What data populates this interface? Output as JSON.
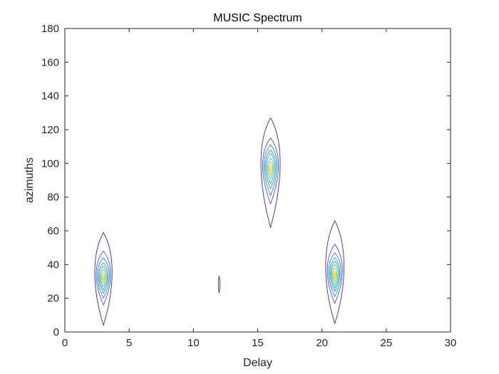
{
  "chart_data": {
    "type": "contour",
    "title": "MUSIC Spectrum",
    "xlabel": "Delay",
    "ylabel": "azimuths",
    "xlim": [
      0,
      30
    ],
    "ylim": [
      0,
      180
    ],
    "xticks": [
      0,
      5,
      10,
      15,
      20,
      25,
      30
    ],
    "yticks": [
      0,
      20,
      40,
      60,
      80,
      100,
      120,
      140,
      160,
      180
    ],
    "grid": false,
    "colors": {
      "levels": [
        "#3e26a8",
        "#4253e9",
        "#2f7bf5",
        "#2a9dd9",
        "#20b6b4",
        "#4fc38a",
        "#a6c150",
        "#f5ba3c",
        "#f9e61f"
      ]
    },
    "peaks": [
      {
        "delay": 3,
        "azimuth": 32,
        "contours": [
          {
            "level": 1,
            "dx": 0.9,
            "y_low": 4,
            "y_high": 59
          },
          {
            "level": 2,
            "dx": 0.75,
            "y_low": 16,
            "y_high": 48
          },
          {
            "level": 3,
            "dx": 0.62,
            "y_low": 20,
            "y_high": 44
          },
          {
            "level": 4,
            "dx": 0.5,
            "y_low": 23,
            "y_high": 41
          },
          {
            "level": 5,
            "dx": 0.4,
            "y_low": 25,
            "y_high": 39
          },
          {
            "level": 6,
            "dx": 0.3,
            "y_low": 27,
            "y_high": 37
          },
          {
            "level": 7,
            "dx": 0.2,
            "y_low": 29,
            "y_high": 35
          },
          {
            "level": 8,
            "dx": 0.12,
            "y_low": 30.5,
            "y_high": 33.5
          },
          {
            "level": 9,
            "dx": 0.06,
            "y_low": 31.3,
            "y_high": 32.7
          }
        ]
      },
      {
        "delay": 12,
        "azimuth": 28,
        "contours": [
          {
            "level": 1,
            "dx": 0.08,
            "y_low": 23,
            "y_high": 33
          }
        ]
      },
      {
        "delay": 16,
        "azimuth": 97,
        "contours": [
          {
            "level": 1,
            "dx": 1.0,
            "y_low": 62,
            "y_high": 127
          },
          {
            "level": 2,
            "dx": 0.82,
            "y_low": 76,
            "y_high": 115
          },
          {
            "level": 3,
            "dx": 0.68,
            "y_low": 81,
            "y_high": 111
          },
          {
            "level": 4,
            "dx": 0.56,
            "y_low": 85,
            "y_high": 108
          },
          {
            "level": 5,
            "dx": 0.45,
            "y_low": 88,
            "y_high": 106
          },
          {
            "level": 6,
            "dx": 0.34,
            "y_low": 91,
            "y_high": 103
          },
          {
            "level": 7,
            "dx": 0.24,
            "y_low": 93,
            "y_high": 101
          },
          {
            "level": 8,
            "dx": 0.15,
            "y_low": 95,
            "y_high": 99
          },
          {
            "level": 9,
            "dx": 0.07,
            "y_low": 96.2,
            "y_high": 97.8
          }
        ]
      },
      {
        "delay": 21,
        "azimuth": 34,
        "contours": [
          {
            "level": 1,
            "dx": 0.95,
            "y_low": 5,
            "y_high": 66
          },
          {
            "level": 2,
            "dx": 0.78,
            "y_low": 17,
            "y_high": 52
          },
          {
            "level": 3,
            "dx": 0.64,
            "y_low": 21,
            "y_high": 47
          },
          {
            "level": 4,
            "dx": 0.52,
            "y_low": 24,
            "y_high": 44
          },
          {
            "level": 5,
            "dx": 0.42,
            "y_low": 26,
            "y_high": 42
          },
          {
            "level": 6,
            "dx": 0.32,
            "y_low": 28,
            "y_high": 40
          },
          {
            "level": 7,
            "dx": 0.22,
            "y_low": 30,
            "y_high": 38
          },
          {
            "level": 8,
            "dx": 0.13,
            "y_low": 31.5,
            "y_high": 36.5
          },
          {
            "level": 9,
            "dx": 0.06,
            "y_low": 33,
            "y_high": 35
          }
        ]
      }
    ]
  }
}
